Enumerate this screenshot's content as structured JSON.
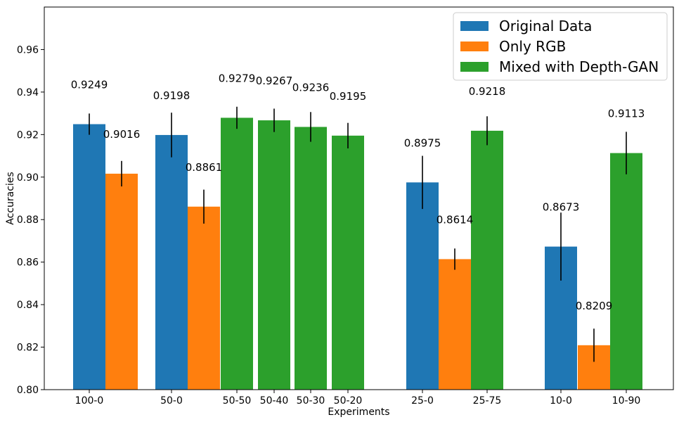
{
  "chart_data": {
    "type": "bar",
    "xlabel": "Experiments",
    "ylabel": "Accuracies",
    "ylim": [
      0.8,
      0.98
    ],
    "yticks": [
      "0.80",
      "0.82",
      "0.84",
      "0.86",
      "0.88",
      "0.90",
      "0.92",
      "0.94",
      "0.96"
    ],
    "grid": false,
    "legend": {
      "placement": "top-right",
      "entries": [
        {
          "name": "Original Data",
          "color": "#1f77b4"
        },
        {
          "name": "Only RGB",
          "color": "#ff7f0e"
        },
        {
          "name": "Mixed with Depth-GAN",
          "color": "#2ca02c"
        }
      ]
    },
    "categories": [
      "100-0",
      "50-0",
      "50-50",
      "50-40",
      "50-30",
      "50-20",
      "25-0",
      "25-75",
      "10-0",
      "10-90"
    ],
    "bars": [
      {
        "series": "Original Data",
        "category": "100-0",
        "value": 0.9249,
        "label": "0.9249",
        "error": 0.005
      },
      {
        "series": "Only RGB",
        "category": "100-0",
        "value": 0.9016,
        "label": "0.9016",
        "error": 0.006
      },
      {
        "series": "Original Data",
        "category": "50-0",
        "value": 0.9198,
        "label": "0.9198",
        "error": 0.0105
      },
      {
        "series": "Only RGB",
        "category": "50-0",
        "value": 0.8861,
        "label": "0.8861",
        "error": 0.008
      },
      {
        "series": "Mixed with Depth-GAN",
        "category": "50-50",
        "value": 0.9279,
        "label": "0.9279",
        "error": 0.0052
      },
      {
        "series": "Mixed with Depth-GAN",
        "category": "50-40",
        "value": 0.9267,
        "label": "0.9267",
        "error": 0.0055
      },
      {
        "series": "Mixed with Depth-GAN",
        "category": "50-30",
        "value": 0.9236,
        "label": "0.9236",
        "error": 0.007
      },
      {
        "series": "Mixed with Depth-GAN",
        "category": "50-20",
        "value": 0.9195,
        "label": "0.9195",
        "error": 0.006
      },
      {
        "series": "Original Data",
        "category": "25-0",
        "value": 0.8975,
        "label": "0.8975",
        "error": 0.0125
      },
      {
        "series": "Only RGB",
        "category": "25-0",
        "value": 0.8614,
        "label": "0.8614",
        "error": 0.005
      },
      {
        "series": "Mixed with Depth-GAN",
        "category": "25-75",
        "value": 0.9218,
        "label": "0.9218",
        "error": 0.0068
      },
      {
        "series": "Original Data",
        "category": "10-0",
        "value": 0.8673,
        "label": "0.8673",
        "error": 0.016
      },
      {
        "series": "Only RGB",
        "category": "10-0",
        "value": 0.8209,
        "label": "0.8209",
        "error": 0.0078
      },
      {
        "series": "Mixed with Depth-GAN",
        "category": "10-90",
        "value": 0.9113,
        "label": "0.9113",
        "error": 0.01
      }
    ]
  }
}
